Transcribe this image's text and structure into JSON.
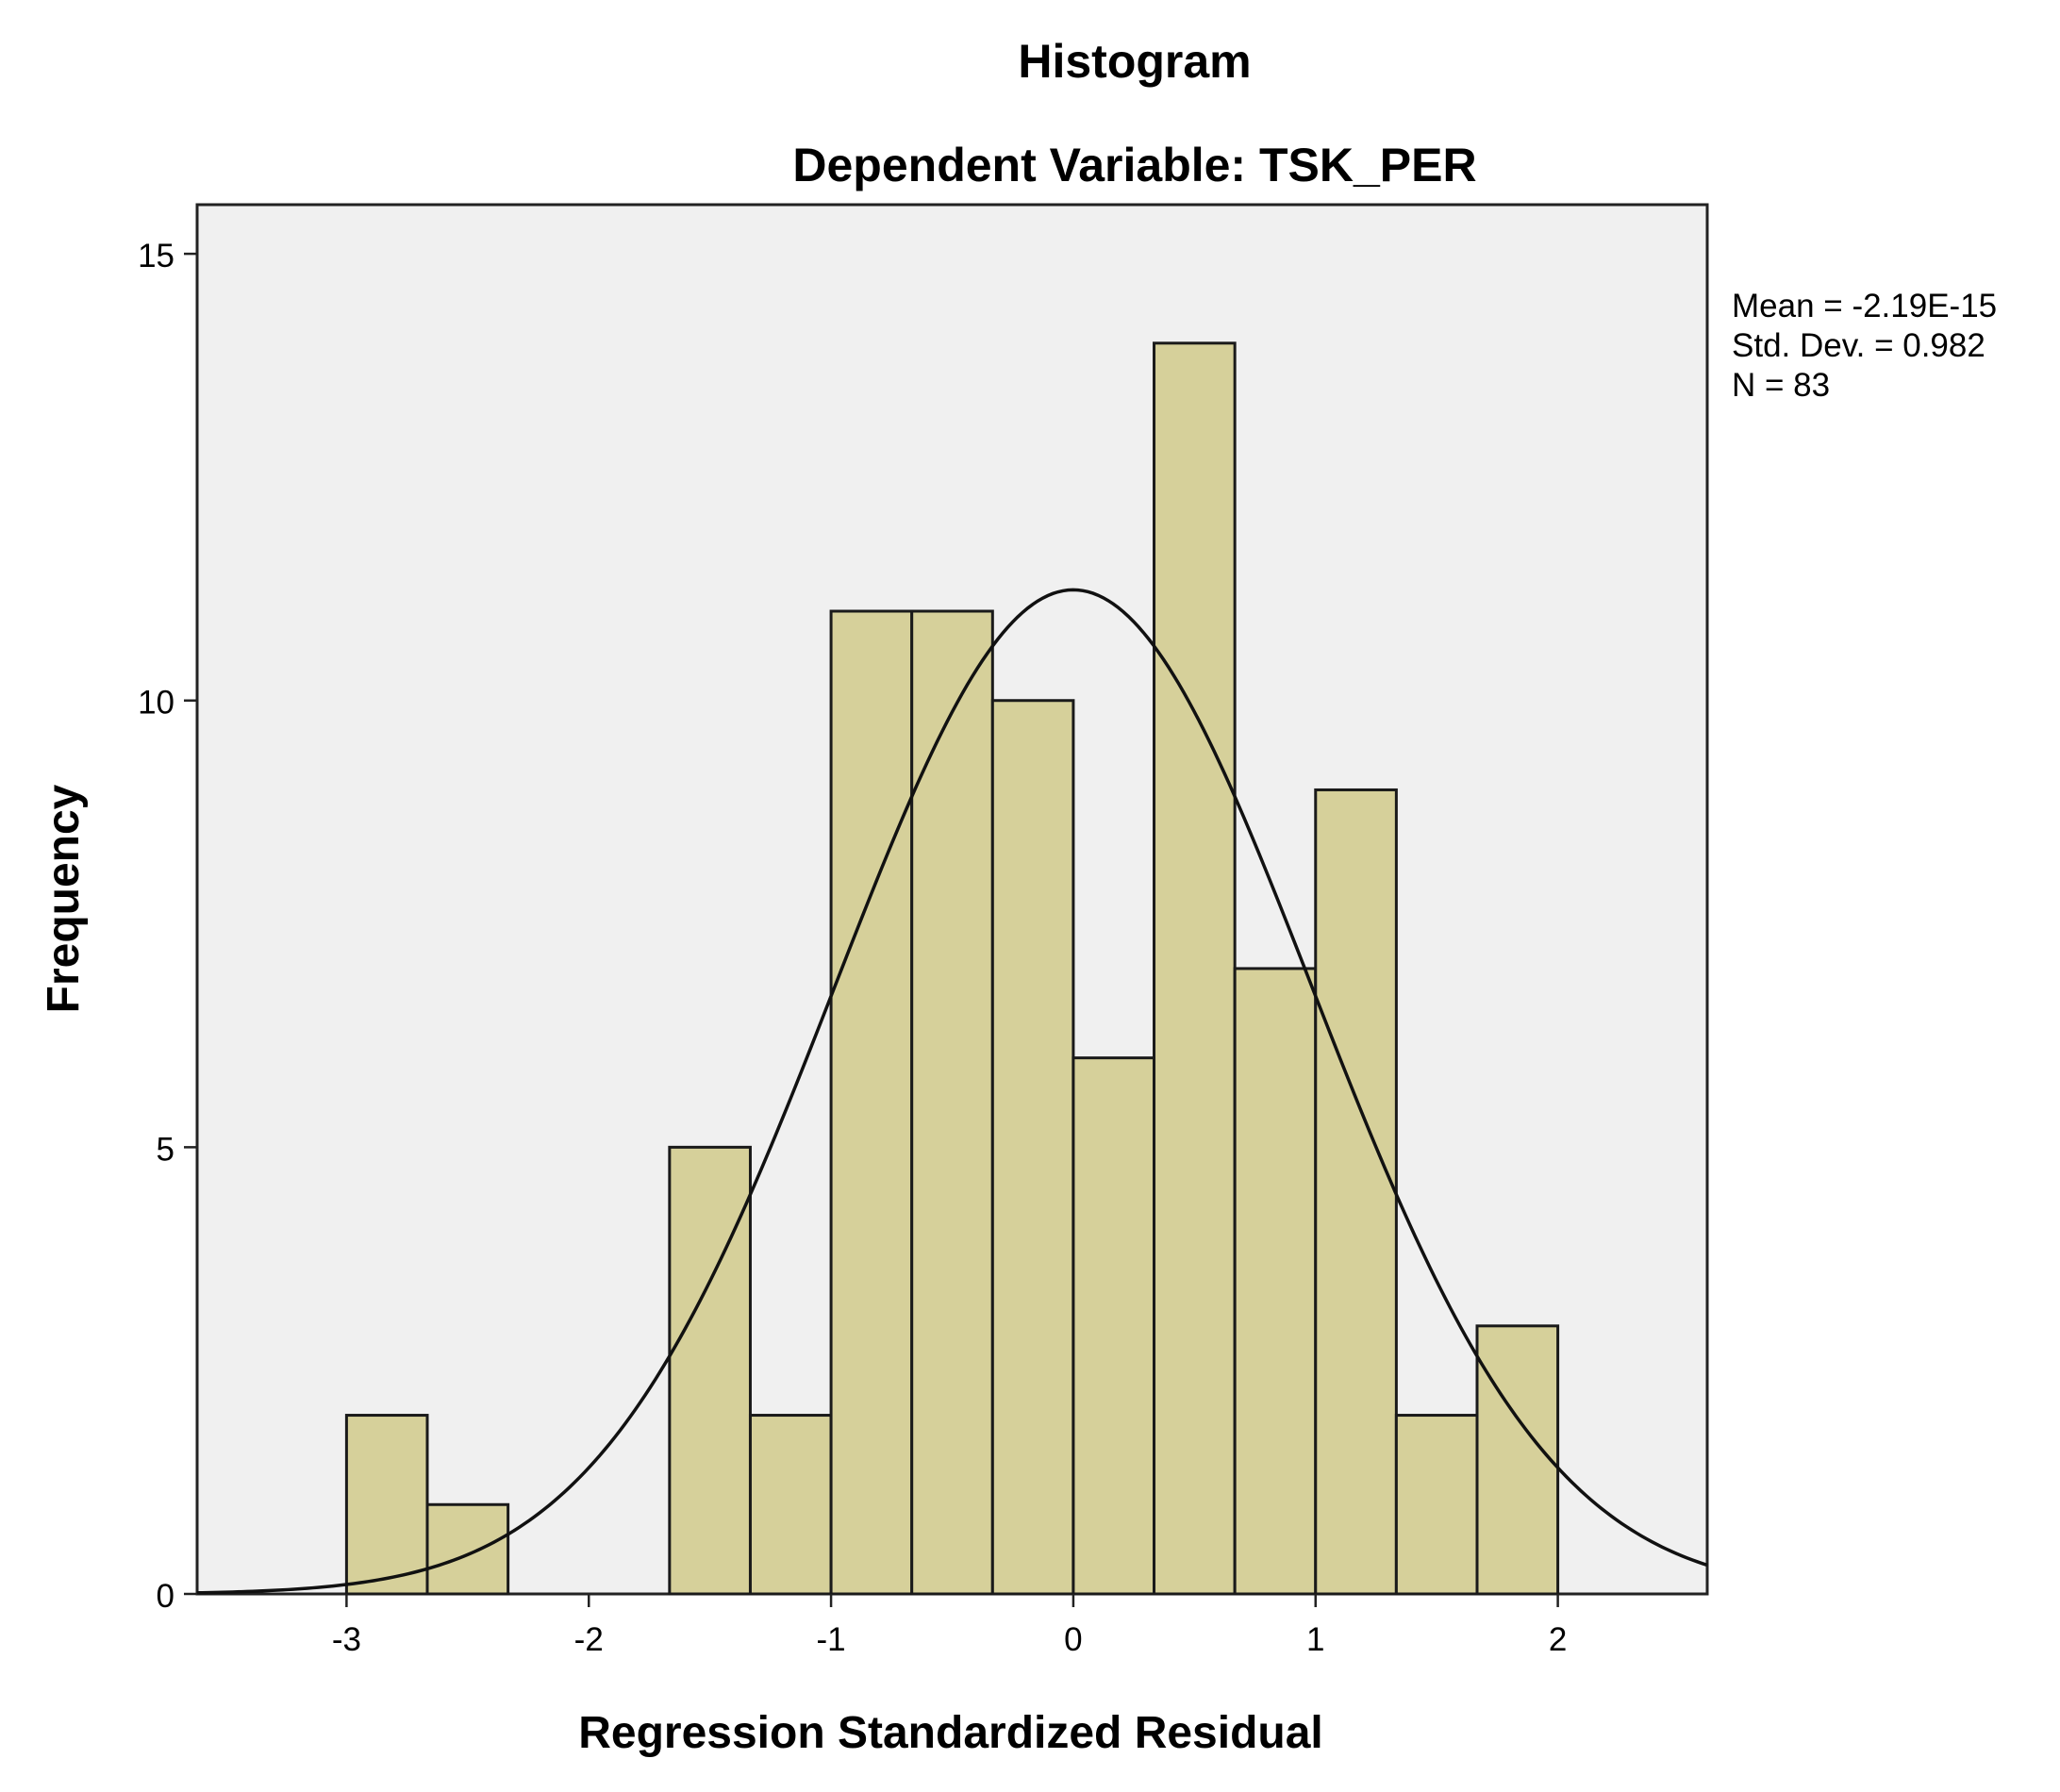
{
  "colors": {
    "page_bg": "#ffffff",
    "plot_bg": "#f0f0f0",
    "bar_fill": "#d6d09a",
    "bar_stroke": "#1a1a1a",
    "curve": "#111111",
    "axis": "#222222"
  },
  "chart_data": {
    "type": "bar",
    "title": "Histogram",
    "subtitle": "Dependent Variable: TSK_PER",
    "xlabel": "Regression Standardized Residual",
    "ylabel": "Frequency",
    "xlim": [
      -3.6167,
      2.6167
    ],
    "ylim": [
      0,
      15.55
    ],
    "x_ticks": [
      -3,
      -2,
      -1,
      0,
      1,
      2
    ],
    "x_tick_labels": [
      "-3",
      "-2",
      "-1",
      "0",
      "1",
      "2"
    ],
    "y_ticks": [
      0,
      5,
      10,
      15
    ],
    "y_tick_labels": [
      "0",
      "5",
      "10",
      "15"
    ],
    "bin_width": 0.3333,
    "bins": [
      {
        "start": -3.0,
        "end": -2.6667,
        "count": 2
      },
      {
        "start": -2.6667,
        "end": -2.3333,
        "count": 1
      },
      {
        "start": -2.3333,
        "end": -2.0,
        "count": 0
      },
      {
        "start": -2.0,
        "end": -1.6667,
        "count": 0
      },
      {
        "start": -1.6667,
        "end": -1.3333,
        "count": 5
      },
      {
        "start": -1.3333,
        "end": -1.0,
        "count": 2
      },
      {
        "start": -1.0,
        "end": -0.6667,
        "count": 11
      },
      {
        "start": -0.6667,
        "end": -0.3333,
        "count": 11
      },
      {
        "start": -0.3333,
        "end": 0.0,
        "count": 10
      },
      {
        "start": 0.0,
        "end": 0.3333,
        "count": 6
      },
      {
        "start": 0.3333,
        "end": 0.6667,
        "count": 14
      },
      {
        "start": 0.6667,
        "end": 1.0,
        "count": 7
      },
      {
        "start": 1.0,
        "end": 1.3333,
        "count": 9
      },
      {
        "start": 1.3333,
        "end": 1.6667,
        "count": 2
      },
      {
        "start": 1.6667,
        "end": 2.0,
        "count": 3
      }
    ],
    "normal_curve": {
      "mean": 0,
      "std": 0.982,
      "n": 83
    },
    "stats": {
      "mean_label": "Mean = -2.19E-15",
      "std_label": "Std. Dev. = 0.982",
      "n_label": "N = 83"
    }
  }
}
